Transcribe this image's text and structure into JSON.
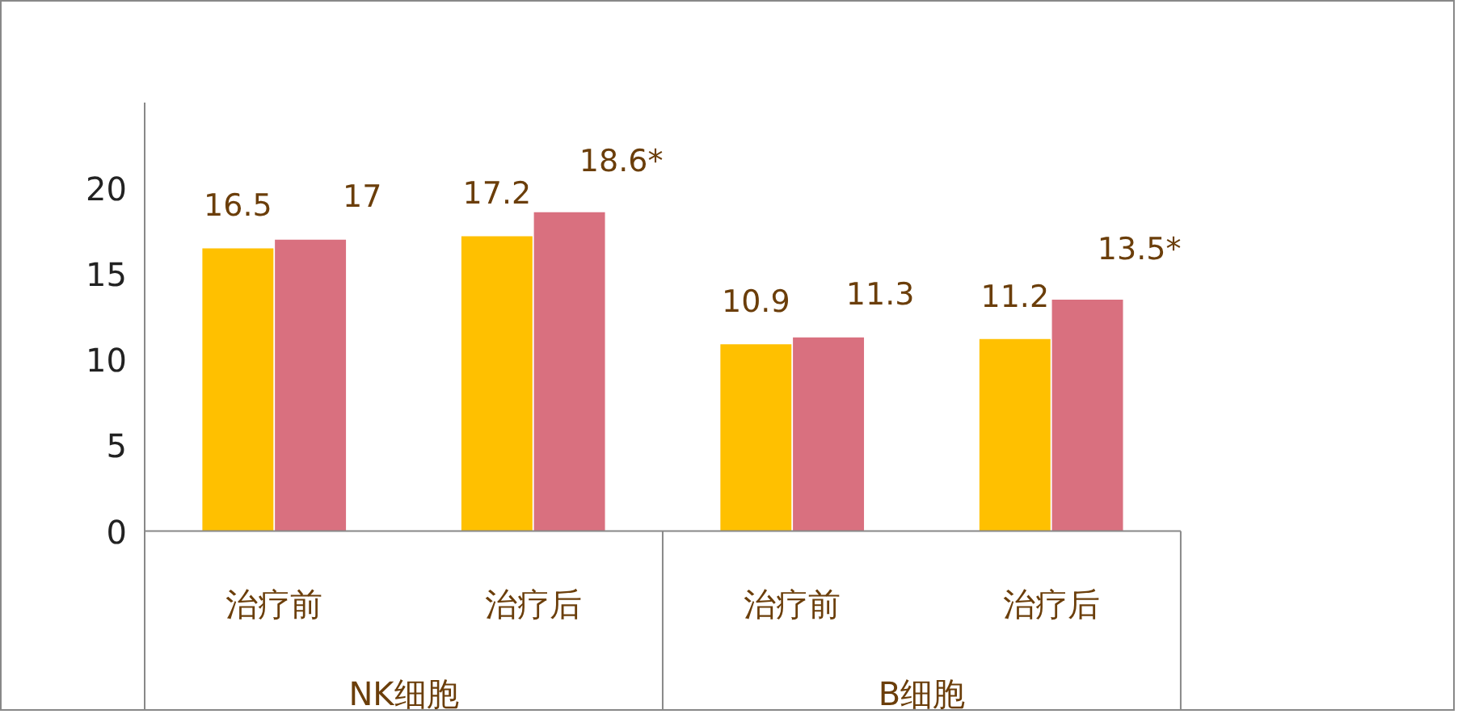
{
  "chart_data": {
    "type": "bar",
    "categories": [
      "治疗前",
      "治疗后",
      "治疗前",
      "治疗后"
    ],
    "series": [
      {
        "color": "#ffc000",
        "values": [
          16.5,
          17.2,
          10.9,
          11.2
        ],
        "value_labels": [
          "16.5",
          "17.2",
          "10.9",
          "11.2"
        ]
      },
      {
        "color": "#d9707f",
        "values": [
          17,
          18.6,
          11.3,
          13.5
        ],
        "value_labels": [
          "17",
          "18.6*",
          "11.3",
          "13.5*"
        ]
      }
    ],
    "annotations": [
      "NK细胞",
      "B细胞"
    ],
    "ylim": [
      0,
      25
    ],
    "yticks": [
      0,
      5,
      10,
      15,
      20
    ],
    "grid": false
  }
}
